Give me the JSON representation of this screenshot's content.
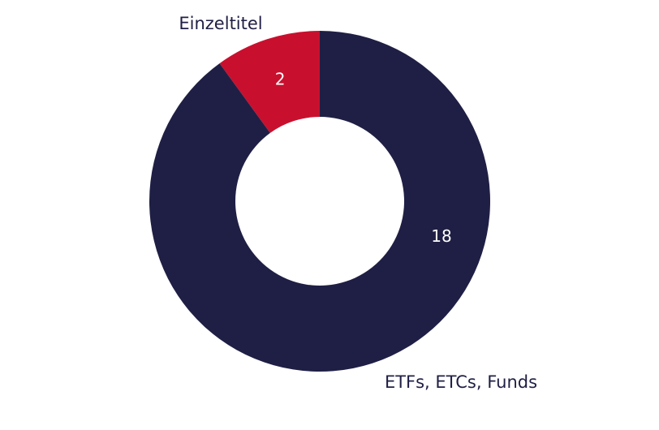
{
  "chart_data": {
    "type": "pie",
    "hole": true,
    "categories": [
      "Einzeltitel",
      "ETFs, ETCs, Funds"
    ],
    "values": [
      2,
      18
    ],
    "colors": [
      "#c8102e",
      "#1f1f45"
    ],
    "data_labels": [
      "2",
      "18"
    ],
    "legend": "none"
  }
}
